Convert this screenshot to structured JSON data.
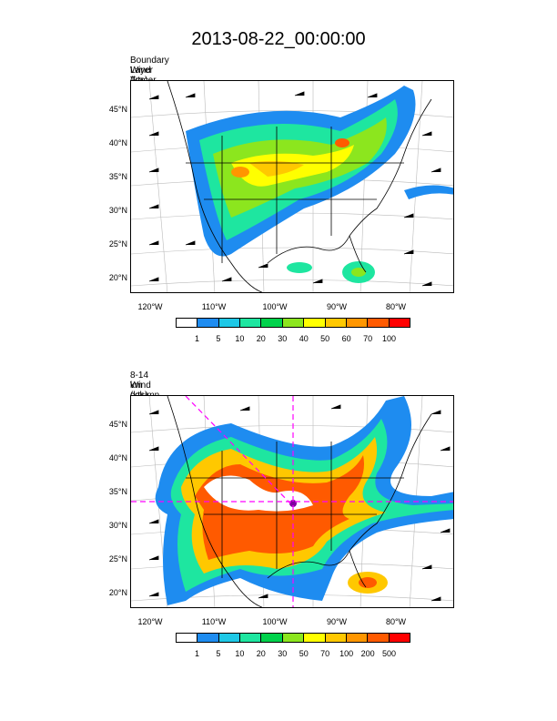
{
  "title": "2013-08-22_00:00:00",
  "chart_data": [
    {
      "type": "heatmap",
      "field_label": "Boundary Layer Tracer   (%)     at   12 km",
      "wind_label": "Wind   (kts)     at   12 km",
      "yticks": [
        "45°N",
        "40°N",
        "35°N",
        "30°N",
        "25°N",
        "20°N"
      ],
      "xticks": [
        "120°W",
        "110°W",
        "100°W",
        "90°W",
        "80°W"
      ],
      "colorbar_labels": [
        "1",
        "5",
        "10",
        "20",
        "30",
        "40",
        "50",
        "60",
        "70",
        "100"
      ],
      "colorbar_colors": [
        "#ffffff",
        "#1e8cf0",
        "#1ec8e6",
        "#1ee6a0",
        "#00d24b",
        "#8ce61e",
        "#ffff00",
        "#ffc800",
        "#ff9600",
        "#ff5a00",
        "#ff0000"
      ]
    },
    {
      "type": "heatmap",
      "field_label": "8-14 km column BL Tracer   (%)",
      "wind_label": "Wind   (kts)     at   12 km",
      "yticks": [
        "45°N",
        "40°N",
        "35°N",
        "30°N",
        "25°N",
        "20°N"
      ],
      "xticks": [
        "120°W",
        "110°W",
        "100°W",
        "90°W",
        "80°W"
      ],
      "colorbar_labels": [
        "1",
        "5",
        "10",
        "20",
        "30",
        "50",
        "70",
        "100",
        "200",
        "500"
      ],
      "colorbar_colors": [
        "#ffffff",
        "#1e8cf0",
        "#1ec8e6",
        "#1ee6a0",
        "#00d24b",
        "#8ce61e",
        "#ffff00",
        "#ffc800",
        "#ff9600",
        "#ff5a00",
        "#ff0000"
      ]
    }
  ]
}
